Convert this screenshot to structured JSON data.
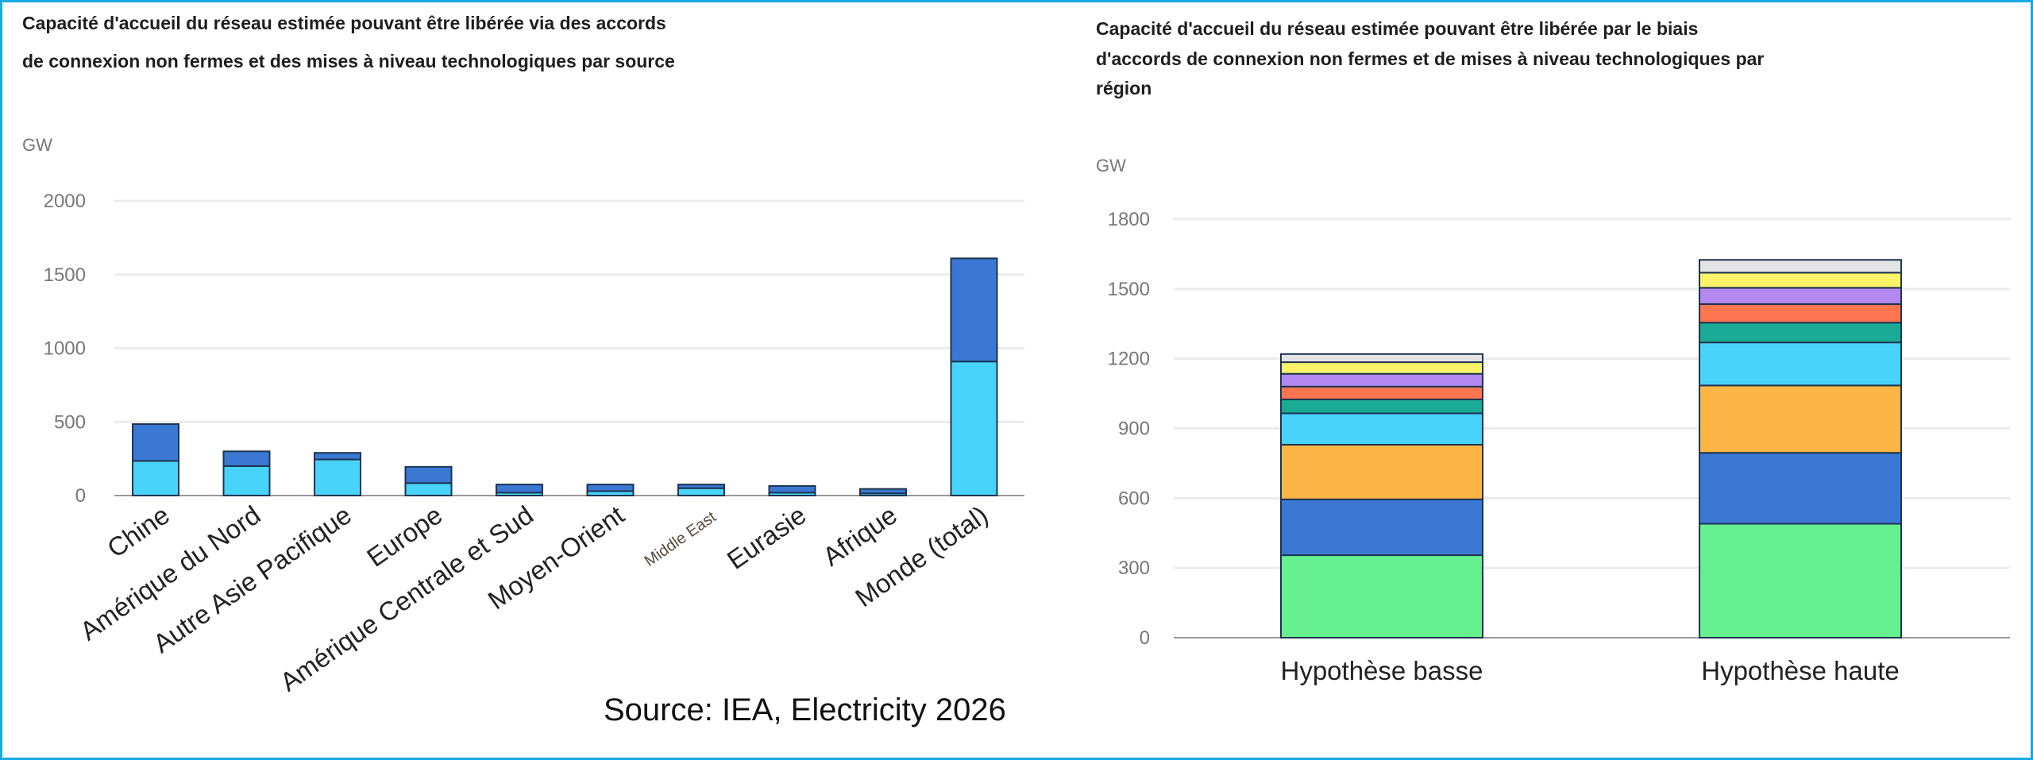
{
  "source": "Source: IEA, Electricity 2026",
  "border_color": "#1aa9e0",
  "chart_data": [
    {
      "type": "bar",
      "stacked": true,
      "title": [
        "Capacité d'accueil du réseau estimée pouvant être libérée via des accords",
        "de connexion non fermes et des mises à niveau technologiques par source"
      ],
      "ylabel": "GW",
      "ylim": [
        0,
        2000
      ],
      "yticks": [
        0,
        500,
        1000,
        1500,
        2000
      ],
      "grid": true,
      "categories": [
        "Chine",
        "Amérique du Nord",
        "Autre Asie Pacifique",
        "Europe",
        "Amérique Centrale et Sud",
        "Moyen-Orient",
        "Middle East",
        "Eurasie",
        "Afrique",
        "Monde (total)"
      ],
      "series": [
        {
          "color": "#48d3fb",
          "values": [
            235,
            200,
            245,
            85,
            20,
            30,
            50,
            20,
            15,
            910
          ]
        },
        {
          "color": "#3b78d4",
          "values": [
            250,
            100,
            45,
            110,
            55,
            45,
            25,
            45,
            30,
            700
          ]
        }
      ]
    },
    {
      "type": "bar",
      "stacked": true,
      "title": [
        "Capacité d'accueil du réseau estimée pouvant être libérée par le biais",
        "d'accords de connexion non fermes et de mises à niveau technologiques par",
        "région"
      ],
      "ylabel": "GW",
      "ylim": [
        0,
        1800
      ],
      "yticks": [
        0,
        300,
        600,
        900,
        1200,
        1500,
        1800
      ],
      "grid": true,
      "categories": [
        "Hypothèse basse",
        "Hypothèse haute"
      ],
      "series": [
        {
          "color": "#66f08f",
          "values": [
            355,
            490
          ]
        },
        {
          "color": "#3b78d4",
          "values": [
            240,
            305
          ]
        },
        {
          "color": "#fdb546",
          "values": [
            235,
            290
          ]
        },
        {
          "color": "#48d3fb",
          "values": [
            135,
            185
          ]
        },
        {
          "color": "#1aab96",
          "values": [
            60,
            85
          ]
        },
        {
          "color": "#fe7550",
          "values": [
            55,
            80
          ]
        },
        {
          "color": "#b388f0",
          "values": [
            55,
            70
          ]
        },
        {
          "color": "#fdf46a",
          "values": [
            50,
            65
          ]
        },
        {
          "color": "#e4e4e4",
          "values": [
            35,
            55
          ]
        }
      ]
    }
  ]
}
